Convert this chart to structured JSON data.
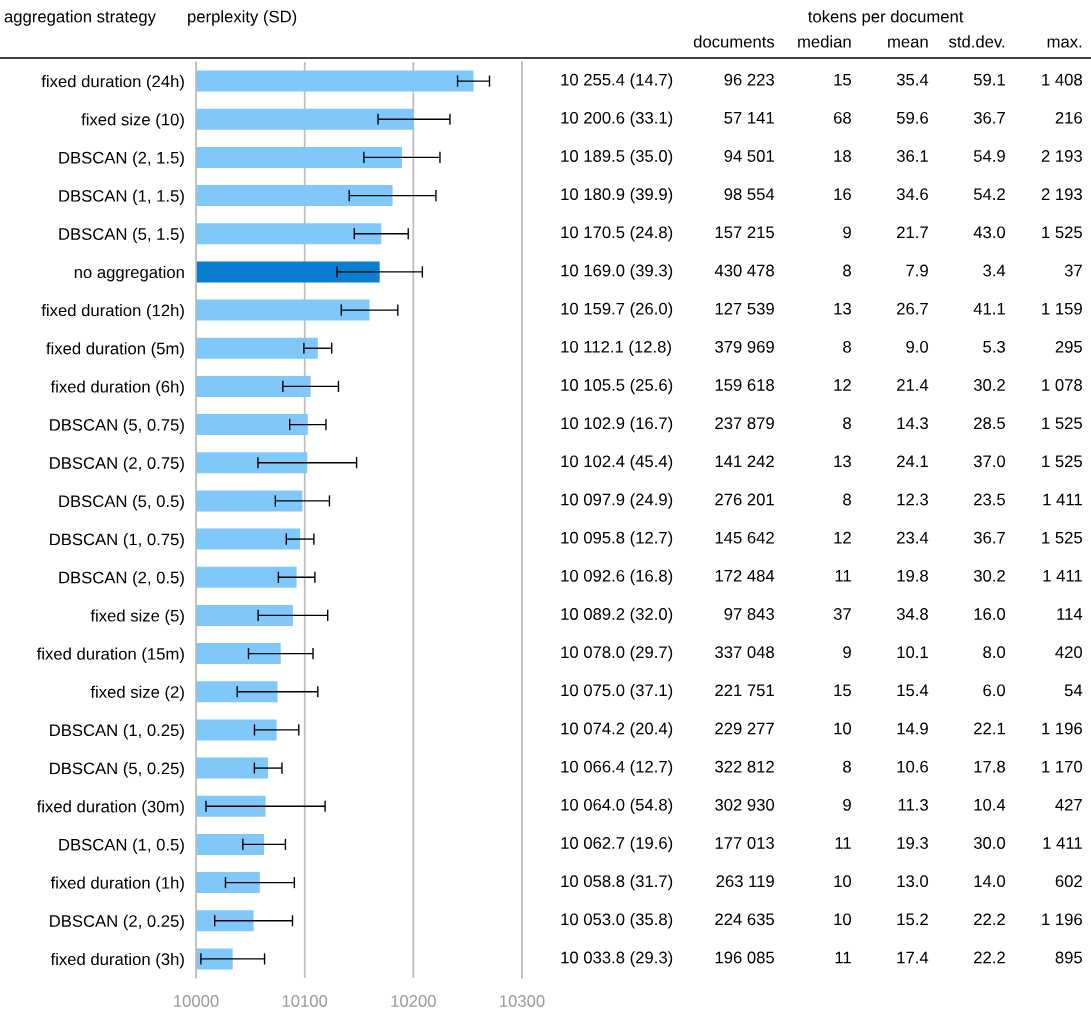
{
  "chart_data": [
    {
      "type": "bar",
      "orientation": "horizontal",
      "title": "perplexity (SD)",
      "ylabel": "aggregation strategy",
      "categories": [
        "fixed duration (24h)",
        "fixed size (10)",
        "DBSCAN (2, 1.5)",
        "DBSCAN (1, 1.5)",
        "DBSCAN (5, 1.5)",
        "no aggregation",
        "fixed duration (12h)",
        "fixed duration (5m)",
        "fixed duration (6h)",
        "DBSCAN (5, 0.75)",
        "DBSCAN (2, 0.75)",
        "DBSCAN (5, 0.5)",
        "DBSCAN (1, 0.75)",
        "DBSCAN (2, 0.5)",
        "fixed size (5)",
        "fixed duration (15m)",
        "fixed size (2)",
        "DBSCAN (1, 0.25)",
        "DBSCAN (5, 0.25)",
        "fixed duration (30m)",
        "DBSCAN (1, 0.5)",
        "fixed duration (1h)",
        "DBSCAN (2, 0.25)",
        "fixed duration (3h)"
      ],
      "values": [
        10255.4,
        10200.6,
        10189.5,
        10180.9,
        10170.5,
        10169.0,
        10159.7,
        10112.1,
        10105.5,
        10102.9,
        10102.4,
        10097.9,
        10095.8,
        10092.6,
        10089.2,
        10078.0,
        10075.0,
        10074.2,
        10066.4,
        10064.0,
        10062.7,
        10058.8,
        10053.0,
        10033.8
      ],
      "errors": [
        14.7,
        33.1,
        35.0,
        39.9,
        24.8,
        39.3,
        26.0,
        12.8,
        25.6,
        16.7,
        45.4,
        24.9,
        12.7,
        16.8,
        32.0,
        29.7,
        37.1,
        20.4,
        12.7,
        54.8,
        19.6,
        31.7,
        35.8,
        29.3
      ],
      "value_labels": [
        "10 255.4 (14.7)",
        "10 200.6 (33.1)",
        "10 189.5 (35.0)",
        "10 180.9 (39.9)",
        "10 170.5 (24.8)",
        "10 169.0 (39.3)",
        "10 159.7 (26.0)",
        "10 112.1 (12.8)",
        "10 105.5 (25.6)",
        "10 102.9 (16.7)",
        "10 102.4 (45.4)",
        "10 097.9 (24.9)",
        "10 095.8 (12.7)",
        "10 092.6 (16.8)",
        "10 089.2 (32.0)",
        "10 078.0 (29.7)",
        "10 075.0 (37.1)",
        "10 074.2 (20.4)",
        "10 066.4 (12.7)",
        "10 064.0 (54.8)",
        "10 062.7 (19.6)",
        "10 058.8 (31.7)",
        "10 053.0 (35.8)",
        "10 033.8 (29.3)"
      ],
      "colors": [
        "#80c8fa",
        "#80c8fa",
        "#80c8fa",
        "#80c8fa",
        "#80c8fa",
        "#0a7fcf",
        "#80c8fa",
        "#80c8fa",
        "#80c8fa",
        "#80c8fa",
        "#80c8fa",
        "#80c8fa",
        "#80c8fa",
        "#80c8fa",
        "#80c8fa",
        "#80c8fa",
        "#80c8fa",
        "#80c8fa",
        "#80c8fa",
        "#80c8fa",
        "#80c8fa",
        "#80c8fa",
        "#80c8fa",
        "#80c8fa"
      ],
      "xlim": [
        10000,
        10300
      ],
      "xticks": [
        10000,
        10100,
        10200,
        10300
      ],
      "grid": "x"
    },
    {
      "type": "other",
      "title": "tokens per document",
      "categories": [
        "documents",
        "median",
        "mean",
        "std.dev.",
        "max."
      ],
      "annotations": [
        "96 223",
        "15",
        "35.4",
        "59.1",
        "1 408",
        "57 141",
        "68",
        "59.6",
        "36.7",
        "216",
        "94 501",
        "18",
        "36.1",
        "54.9",
        "2 193",
        "98 554",
        "16",
        "34.6",
        "54.2",
        "2 193",
        "157 215",
        "9",
        "21.7",
        "43.0",
        "1 525",
        "430 478",
        "8",
        "7.9",
        "3.4",
        "37",
        "127 539",
        "13",
        "26.7",
        "41.1",
        "1 159",
        "379 969",
        "8",
        "9.0",
        "5.3",
        "295",
        "159 618",
        "12",
        "21.4",
        "30.2",
        "1 078",
        "237 879",
        "8",
        "14.3",
        "28.5",
        "1 525",
        "141 242",
        "13",
        "24.1",
        "37.0",
        "1 525",
        "276 201",
        "8",
        "12.3",
        "23.5",
        "1 411",
        "145 642",
        "12",
        "23.4",
        "36.7",
        "1 525",
        "172 484",
        "11",
        "19.8",
        "30.2",
        "1 411",
        "97 843",
        "37",
        "34.8",
        "16.0",
        "114",
        "337 048",
        "9",
        "10.1",
        "8.0",
        "420",
        "221 751",
        "15",
        "15.4",
        "6.0",
        "54",
        "229 277",
        "10",
        "14.9",
        "22.1",
        "1 196",
        "322 812",
        "8",
        "10.6",
        "17.8",
        "1 170",
        "302 930",
        "9",
        "11.3",
        "10.4",
        "427",
        "177 013",
        "11",
        "19.3",
        "30.0",
        "1 411",
        "263 119",
        "10",
        "13.0",
        "14.0",
        "602",
        "224 635",
        "10",
        "15.2",
        "22.2",
        "1 196",
        "196 085",
        "11",
        "17.4",
        "22.2",
        "895"
      ]
    }
  ]
}
